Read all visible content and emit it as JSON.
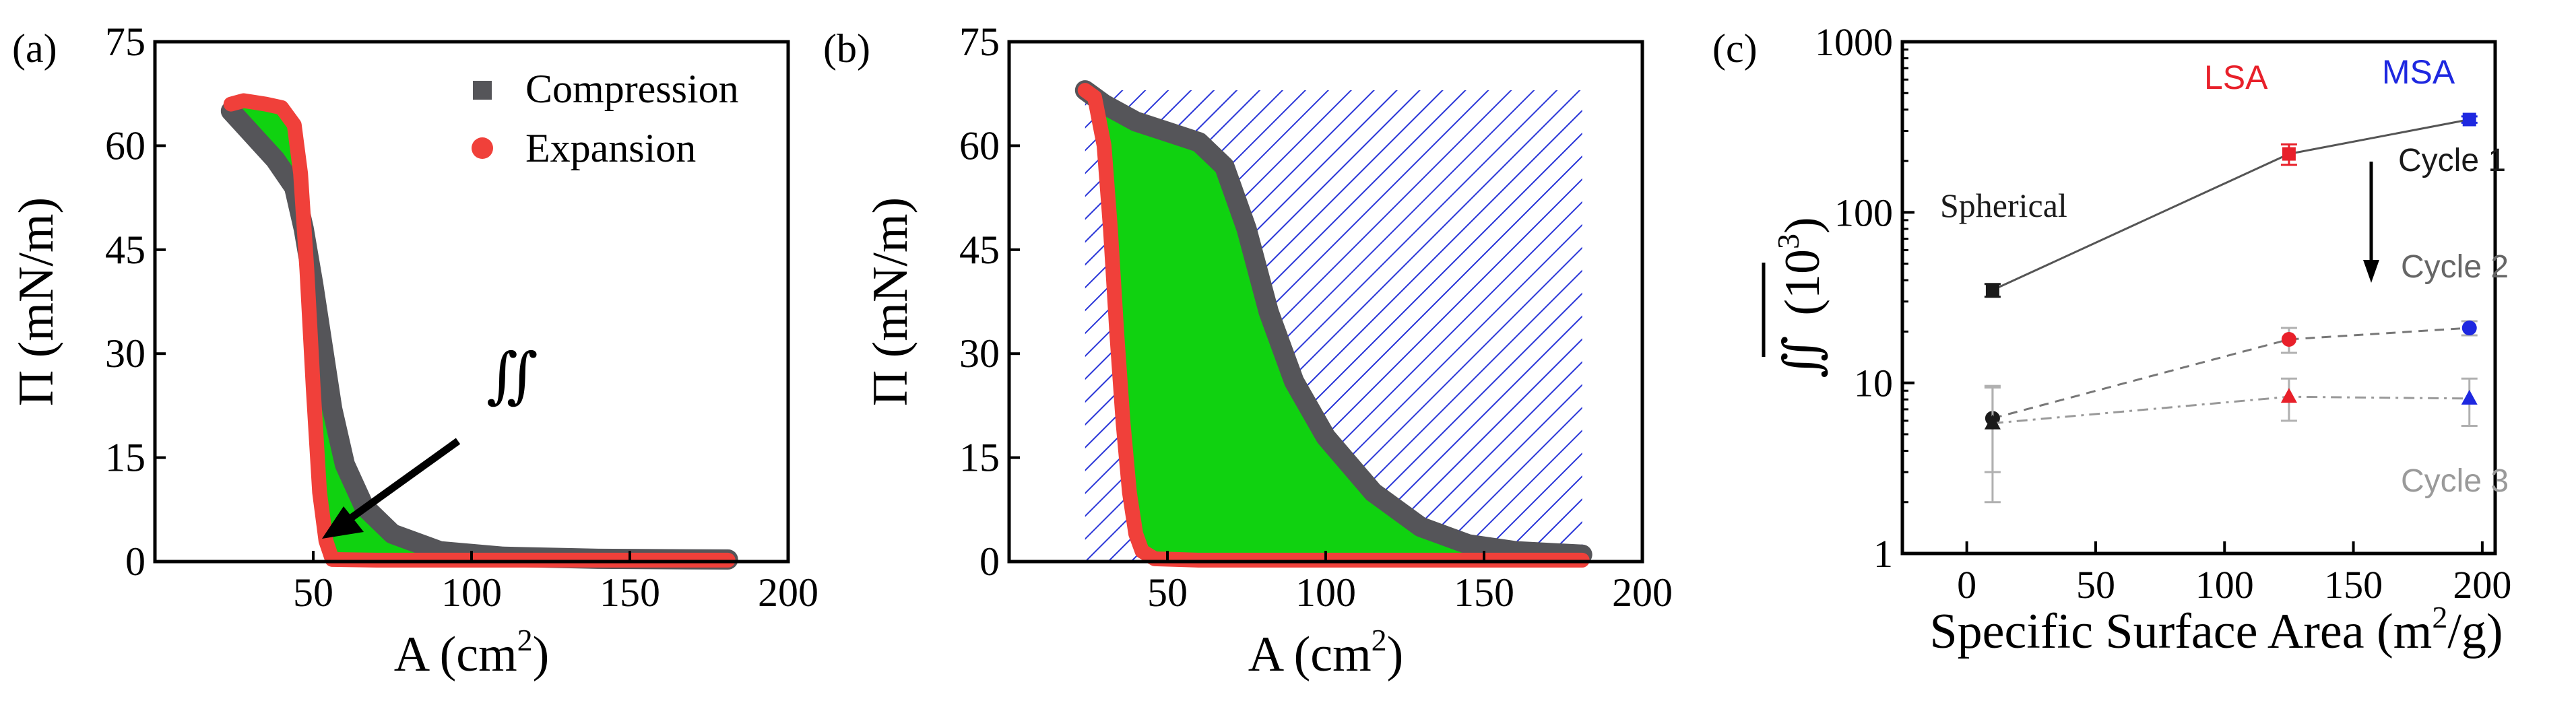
{
  "panel_labels": {
    "a": "(a)",
    "b": "(b)",
    "c": "(c)"
  },
  "chart_data": [
    {
      "type": "line",
      "panel": "(a)",
      "xlabel_main": "A (cm",
      "xlabel_sup": "2",
      "xlabel_end": ")",
      "ylabel": "Π (mN/m)",
      "xlim": [
        0,
        200
      ],
      "ylim": [
        0,
        75
      ],
      "xticks": [
        "50",
        "100",
        "150",
        "200"
      ],
      "yticks": [
        "0",
        "15",
        "30",
        "45",
        "60",
        "75"
      ],
      "legend": {
        "placement": "top-right",
        "entries": [
          "Compression",
          "Expansion"
        ]
      },
      "annotation": "∬",
      "series": [
        {
          "name": "Compression",
          "color": "#555559",
          "x": [
            24,
            30,
            38,
            44,
            47,
            50,
            53,
            56,
            60,
            66,
            75,
            90,
            110,
            140,
            181
          ],
          "y": [
            65,
            62,
            58,
            54,
            48,
            40,
            31,
            22,
            14,
            8,
            4,
            1.5,
            0.7,
            0.4,
            0.3
          ]
        },
        {
          "name": "Expansion",
          "color": "#f0403a",
          "x": [
            24,
            28,
            35,
            40,
            44,
            46,
            48,
            50,
            52,
            54,
            56,
            70,
            100,
            150,
            181
          ],
          "y": [
            66,
            66.5,
            66,
            65.5,
            63,
            56,
            42,
            25,
            10,
            3,
            0.3,
            0.2,
            0.2,
            0.2,
            0.2
          ]
        }
      ],
      "fill_color": "#10d210"
    },
    {
      "type": "line",
      "panel": "(b)",
      "xlabel_main": "A (cm",
      "xlabel_sup": "2",
      "xlabel_end": ")",
      "ylabel": "Π (mN/m)",
      "xlim": [
        0,
        200
      ],
      "ylim": [
        0,
        75
      ],
      "xticks": [
        "50",
        "100",
        "150",
        "200"
      ],
      "yticks": [
        "0",
        "15",
        "30",
        "45",
        "60",
        "75"
      ],
      "hatch_color": "#2a36d8",
      "fill_color": "#10d210",
      "series": [
        {
          "name": "Compression",
          "color": "#555559",
          "x": [
            24,
            30,
            40,
            50,
            60,
            68,
            75,
            82,
            90,
            100,
            115,
            130,
            145,
            160,
            181
          ],
          "y": [
            68,
            66,
            63.5,
            62,
            60.5,
            57,
            48,
            36,
            26,
            18,
            10,
            5,
            2.5,
            1.5,
            1
          ]
        },
        {
          "name": "Expansion",
          "color": "#f0403a",
          "x": [
            24,
            27,
            30,
            32,
            34,
            36,
            38,
            40,
            42,
            46,
            60,
            100,
            181
          ],
          "y": [
            68,
            67,
            60,
            48,
            33,
            20,
            10,
            4,
            1.5,
            0.4,
            0.2,
            0.2,
            0.2
          ]
        }
      ]
    },
    {
      "type": "scatter",
      "panel": "(c)",
      "xlabel_main": "Specific Surface Area (m",
      "xlabel_sup": "2",
      "xlabel_end": "/g)",
      "ylabel_main": "∬",
      "ylabel_unit": "(10",
      "ylabel_sup": "3",
      "ylabel_end": ")",
      "yscale": "log",
      "xlim": [
        -25,
        205
      ],
      "ylim": [
        1,
        1000
      ],
      "xticks": [
        {
          "v": 0,
          "t": "0"
        },
        {
          "v": 50,
          "t": "50"
        },
        {
          "v": 100,
          "t": "100"
        },
        {
          "v": 150,
          "t": "150"
        },
        {
          "v": 200,
          "t": "200"
        }
      ],
      "yticks": [
        {
          "v": 1,
          "t": "1"
        },
        {
          "v": 10,
          "t": "10"
        },
        {
          "v": 100,
          "t": "100"
        },
        {
          "v": 1000,
          "t": "1000"
        }
      ],
      "x": [
        10,
        125,
        195
      ],
      "point_colors": [
        "#1a1a1a",
        "#e8202a",
        "#1e28e0"
      ],
      "series": [
        {
          "name": "Cycle 1",
          "marker": "square",
          "line": "solid",
          "line_color": "#555555",
          "label_color": "#1a1a1a",
          "values": [
            35,
            220,
            350
          ],
          "errors": [
            3,
            30,
            15
          ]
        },
        {
          "name": "Cycle 2",
          "marker": "circle",
          "line": "dashed",
          "line_color": "#777777",
          "label_color": "#666666",
          "values": [
            6.2,
            18,
            21
          ],
          "errors": [
            3.2,
            3,
            2
          ]
        },
        {
          "name": "Cycle 3",
          "marker": "triangle",
          "line": "dashdot",
          "line_color": "#999999",
          "label_color": "#9a9a9a",
          "values": [
            5.8,
            8.3,
            8.1
          ],
          "errors": [
            3.8,
            2.3,
            2.5
          ]
        }
      ],
      "annotations": [
        {
          "text": "Spherical",
          "color": "#1a1a1a"
        },
        {
          "text": "LSA",
          "color": "#e8202a"
        },
        {
          "text": "MSA",
          "color": "#1e28e0"
        }
      ]
    }
  ]
}
